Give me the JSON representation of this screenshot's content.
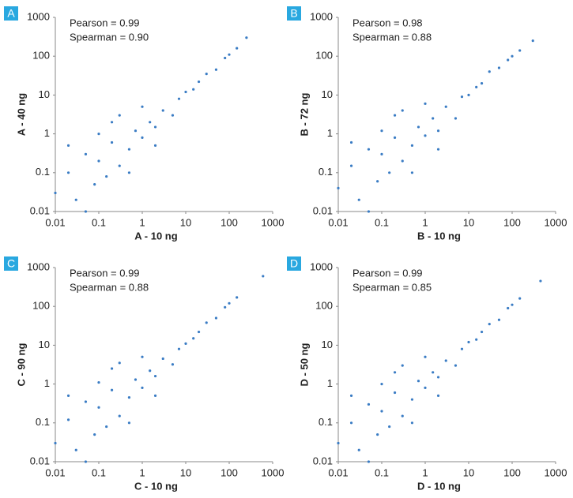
{
  "chart_data": [
    {
      "type": "scatter",
      "panel_label": "A",
      "x_label": "A - 10 ng",
      "y_label": "A - 40 ng",
      "annotations": [
        "Pearson = 0.99",
        "Spearman = 0.90"
      ],
      "log": true,
      "color": "#3a7cc4",
      "label_color": "#29a8e0",
      "xlim": [
        0.01,
        1000
      ],
      "ylim": [
        0.01,
        1000
      ],
      "xticks": [
        0.01,
        0.1,
        1,
        10,
        100,
        1000
      ],
      "yticks": [
        0.01,
        0.1,
        1,
        10,
        100,
        1000
      ],
      "x": [
        0.01,
        0.02,
        0.03,
        0.05,
        0.08,
        0.1,
        0.15,
        0.2,
        0.3,
        0.5,
        0.7,
        1,
        1.5,
        2,
        3,
        5,
        7,
        10,
        15,
        20,
        30,
        50,
        80,
        100,
        150,
        250,
        0.05,
        0.2,
        0.5,
        1,
        0.02,
        0.3,
        2,
        0.1
      ],
      "y": [
        0.03,
        0.1,
        0.02,
        0.3,
        0.05,
        0.2,
        0.08,
        0.6,
        0.15,
        0.4,
        1.2,
        0.8,
        2,
        1.5,
        4,
        3,
        8,
        12,
        14,
        22,
        35,
        45,
        90,
        110,
        160,
        300,
        0.01,
        2,
        0.1,
        5,
        0.5,
        3,
        0.5,
        1
      ]
    },
    {
      "type": "scatter",
      "panel_label": "B",
      "x_label": "B - 10 ng",
      "y_label": "B - 72 ng",
      "annotations": [
        "Pearson = 0.98",
        "Spearman = 0.88"
      ],
      "log": true,
      "color": "#3a7cc4",
      "label_color": "#29a8e0",
      "xlim": [
        0.01,
        1000
      ],
      "ylim": [
        0.01,
        1000
      ],
      "xticks": [
        0.01,
        0.1,
        1,
        10,
        100,
        1000
      ],
      "yticks": [
        0.01,
        0.1,
        1,
        10,
        100,
        1000
      ],
      "x": [
        0.01,
        0.02,
        0.03,
        0.05,
        0.08,
        0.1,
        0.15,
        0.2,
        0.3,
        0.5,
        0.7,
        1,
        1.5,
        2,
        3,
        5,
        7,
        10,
        15,
        20,
        30,
        50,
        80,
        100,
        150,
        300,
        0.05,
        0.2,
        0.5,
        1,
        0.02,
        0.3,
        2,
        0.1
      ],
      "y": [
        0.04,
        0.15,
        0.02,
        0.4,
        0.06,
        0.3,
        0.1,
        0.8,
        0.2,
        0.5,
        1.5,
        0.9,
        2.5,
        1.2,
        5,
        2.5,
        9,
        10,
        16,
        20,
        40,
        50,
        80,
        100,
        140,
        250,
        0.01,
        3,
        0.1,
        6,
        0.6,
        4,
        0.4,
        1.2
      ]
    },
    {
      "type": "scatter",
      "panel_label": "C",
      "x_label": "C - 10 ng",
      "y_label": "C - 90 ng",
      "annotations": [
        "Pearson = 0.99",
        "Spearman = 0.88"
      ],
      "log": true,
      "color": "#3a7cc4",
      "label_color": "#29a8e0",
      "xlim": [
        0.01,
        1000
      ],
      "ylim": [
        0.01,
        1000
      ],
      "xticks": [
        0.01,
        0.1,
        1,
        10,
        100,
        1000
      ],
      "yticks": [
        0.01,
        0.1,
        1,
        10,
        100,
        1000
      ],
      "x": [
        0.01,
        0.02,
        0.03,
        0.05,
        0.08,
        0.1,
        0.15,
        0.2,
        0.3,
        0.5,
        0.7,
        1,
        1.5,
        2,
        3,
        5,
        7,
        10,
        15,
        20,
        30,
        50,
        80,
        100,
        150,
        600,
        0.05,
        0.2,
        0.5,
        1,
        0.02,
        0.3,
        2,
        0.1
      ],
      "y": [
        0.03,
        0.12,
        0.02,
        0.35,
        0.05,
        0.25,
        0.08,
        0.7,
        0.15,
        0.45,
        1.3,
        0.8,
        2.2,
        1.6,
        4.5,
        3.2,
        8,
        11,
        15,
        22,
        38,
        50,
        95,
        120,
        170,
        600,
        0.01,
        2.5,
        0.1,
        5,
        0.5,
        3.5,
        0.5,
        1.1
      ]
    },
    {
      "type": "scatter",
      "panel_label": "D",
      "x_label": "D - 10 ng",
      "y_label": "D - 50 ng",
      "annotations": [
        "Pearson = 0.99",
        "Spearman = 0.85"
      ],
      "log": true,
      "color": "#3a7cc4",
      "label_color": "#29a8e0",
      "xlim": [
        0.01,
        1000
      ],
      "ylim": [
        0.01,
        1000
      ],
      "xticks": [
        0.01,
        0.1,
        1,
        10,
        100,
        1000
      ],
      "yticks": [
        0.01,
        0.1,
        1,
        10,
        100,
        1000
      ],
      "x": [
        0.01,
        0.02,
        0.03,
        0.05,
        0.08,
        0.1,
        0.15,
        0.2,
        0.3,
        0.5,
        0.7,
        1,
        1.5,
        2,
        3,
        5,
        7,
        10,
        15,
        20,
        30,
        50,
        80,
        100,
        150,
        450,
        0.05,
        0.2,
        0.5,
        1,
        0.02,
        0.3,
        2,
        0.1
      ],
      "y": [
        0.03,
        0.1,
        0.02,
        0.3,
        0.05,
        0.2,
        0.08,
        0.6,
        0.15,
        0.4,
        1.2,
        0.8,
        2,
        1.5,
        4,
        3,
        8,
        12,
        14,
        22,
        35,
        45,
        90,
        110,
        160,
        450,
        0.01,
        2,
        0.1,
        5,
        0.5,
        3,
        0.5,
        1
      ]
    }
  ]
}
